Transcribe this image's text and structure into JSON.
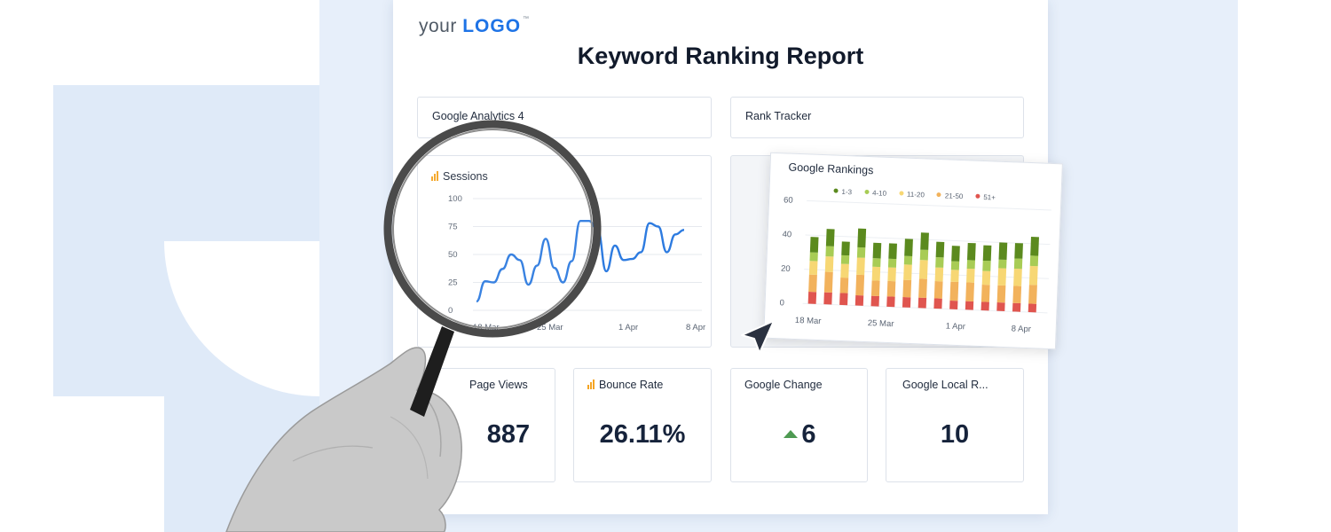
{
  "report": {
    "logo_prefix": "your",
    "logo_brand": "LOGO",
    "logo_tm": "™",
    "title": "Keyword Ranking Report",
    "sections": {
      "analytics": "Google Analytics 4",
      "rank_tracker": "Rank Tracker"
    }
  },
  "sessions_chart": {
    "title": "Sessions",
    "y_ticks": [
      "100",
      "75",
      "50",
      "25",
      "0"
    ],
    "x_ticks": [
      "18 Mar",
      "25 Mar",
      "1 Apr",
      "8 Apr"
    ]
  },
  "rankings_chart": {
    "title": "Google Rankings",
    "y_ticks": [
      "60",
      "40",
      "20",
      "0"
    ],
    "x_ticks": [
      "18 Mar",
      "25 Mar",
      "1 Apr",
      "8 Apr"
    ],
    "legend": [
      {
        "label": "1-3",
        "color": "#5b8a1e"
      },
      {
        "label": "4-10",
        "color": "#a8cc55"
      },
      {
        "label": "11-20",
        "color": "#f7d774"
      },
      {
        "label": "21-50",
        "color": "#f2b25c"
      },
      {
        "label": "51+",
        "color": "#e0554f"
      }
    ]
  },
  "metrics": {
    "page_views": {
      "label": "Page Views",
      "value": "887"
    },
    "bounce_rate": {
      "label": "Bounce Rate",
      "value": "26.11%"
    },
    "google_change": {
      "label": "Google Change",
      "value": "6"
    },
    "google_local": {
      "label": "Google Local R...",
      "value": "10"
    }
  },
  "colors": {
    "accent_blue": "#1e73e6",
    "line_blue": "#2d7be0",
    "up_green": "#4e9a52",
    "icon_orange": "#f5a524"
  },
  "chart_data": [
    {
      "type": "line",
      "title": "Sessions",
      "xlabel": "",
      "ylabel": "",
      "x_ticks": [
        "18 Mar",
        "25 Mar",
        "1 Apr",
        "8 Apr"
      ],
      "ylim": [
        0,
        100
      ],
      "series": [
        {
          "values": [
            8,
            26,
            25,
            37,
            50,
            45,
            23,
            40,
            64,
            38,
            25,
            44,
            80,
            80,
            72,
            35,
            58,
            45,
            46,
            52,
            78,
            75,
            52,
            68,
            72
          ]
        }
      ],
      "grid": true
    },
    {
      "type": "bar",
      "stacked": true,
      "title": "Google Rankings",
      "x_ticks": [
        "18 Mar",
        "25 Mar",
        "1 Apr",
        "8 Apr"
      ],
      "ylim": [
        0,
        60
      ],
      "series": [
        {
          "name": "51+",
          "values": [
            7,
            7,
            7,
            6,
            6,
            6,
            6,
            6,
            6,
            5,
            5,
            5,
            5,
            5,
            5
          ]
        },
        {
          "name": "21-50",
          "values": [
            10,
            12,
            9,
            12,
            9,
            9,
            10,
            11,
            10,
            11,
            11,
            10,
            10,
            10,
            11
          ]
        },
        {
          "name": "11-20",
          "values": [
            8,
            9,
            8,
            10,
            8,
            8,
            9,
            11,
            8,
            7,
            8,
            8,
            10,
            10,
            11
          ]
        },
        {
          "name": "4-10",
          "values": [
            5,
            6,
            5,
            6,
            5,
            5,
            5,
            6,
            6,
            5,
            5,
            6,
            5,
            6,
            6
          ]
        },
        {
          "name": "1-3",
          "values": [
            9,
            10,
            8,
            11,
            9,
            9,
            10,
            10,
            9,
            9,
            10,
            9,
            10,
            9,
            11
          ]
        }
      ]
    }
  ]
}
